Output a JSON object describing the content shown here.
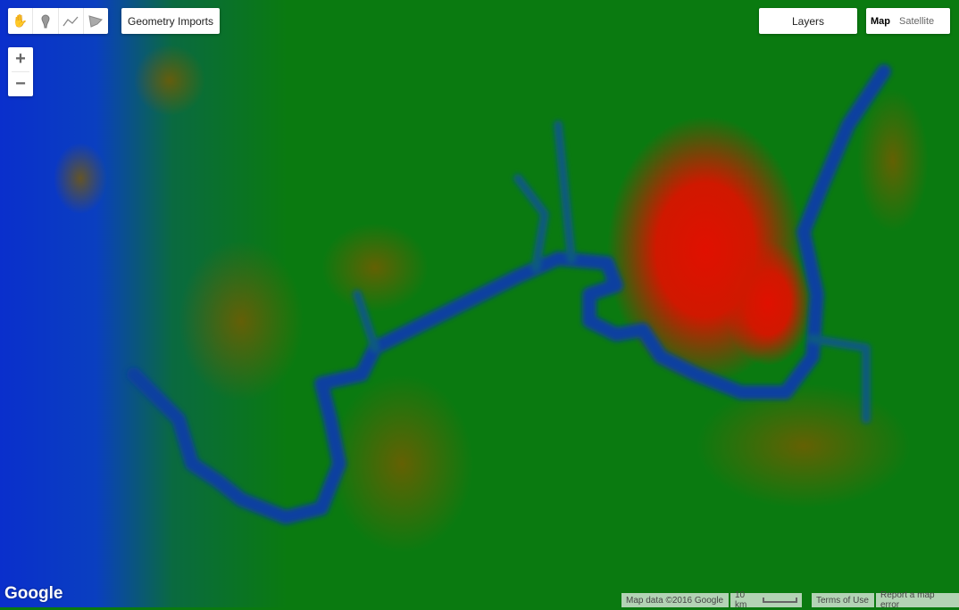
{
  "toolbar": {
    "tools": [
      {
        "name": "pan-hand"
      },
      {
        "name": "marker"
      },
      {
        "name": "line"
      },
      {
        "name": "polygon"
      }
    ],
    "geometry_imports": "Geometry Imports"
  },
  "zoom": {
    "in": "+",
    "out": "−"
  },
  "layers_label": "Layers",
  "map_type": {
    "map": "Map",
    "satellite": "Satellite",
    "selected": "Map"
  },
  "logo": "Google",
  "attribution": {
    "map_data": "Map data ©2016 Google",
    "scale": "10 km",
    "terms": "Terms of Use",
    "report": "Report a map error"
  },
  "colors": {
    "low": "#0022cc",
    "mid": "#0a7a10",
    "high": "#dd1100"
  }
}
